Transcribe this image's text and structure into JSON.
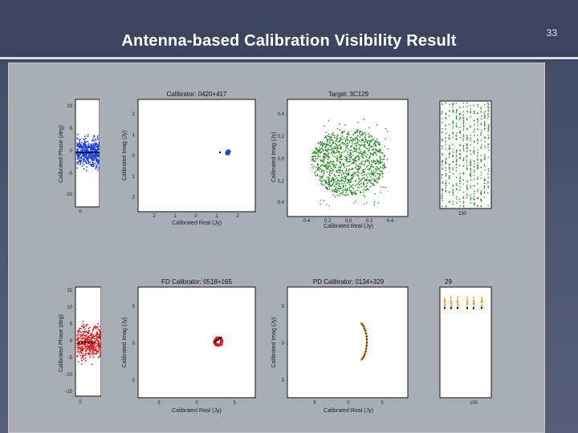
{
  "slide": {
    "title": "Antenna-based Calibration Visibility Result",
    "page_number": "33"
  },
  "plots": {
    "top_left": {
      "ylabel": "Calibrated Phase (deg)",
      "yticks": [
        "10",
        "5",
        "0",
        "-5",
        "-10"
      ],
      "xticks": [
        "0"
      ]
    },
    "top_center": {
      "title": "Calibrator: 0420+417",
      "ylabel": "Calibrated Imag (Jy)",
      "xlabel": "Calibrated Real (Jy)",
      "yticks": [
        "2",
        "1",
        "0",
        "1",
        "2"
      ],
      "xticks": [
        "2",
        "1",
        "0",
        "1",
        "2"
      ]
    },
    "top_right": {
      "title": "Target: 3C129",
      "ylabel": "Calibrated Imag (Jy)",
      "xlabel": "Calibrated Real (Jy)",
      "yticks": [
        "0.4",
        "0.2",
        "0.0",
        "0.2",
        "0.4"
      ],
      "xticks": [
        "0.4",
        "0.2",
        "0.0",
        "0.2",
        "0.4"
      ]
    },
    "top_far_right": {
      "xticks": [
        "150"
      ]
    },
    "bottom_left": {
      "ylabel": "Calibrated Phase (deg)",
      "yticks": [
        "15",
        "10",
        "5",
        "0",
        "-5",
        "-10",
        "-15"
      ],
      "xticks": [
        "0"
      ]
    },
    "bottom_center": {
      "title": "FD Calibrator: 0518+165",
      "ylabel": "Calibrated Imag (Jy)",
      "xlabel": "Calibrated Real (Jy)",
      "yticks": [
        "5",
        "0",
        "5"
      ],
      "xticks": [
        "5",
        "0",
        "5"
      ]
    },
    "bottom_right": {
      "title": "PD Calibrator: 0134+329",
      "ylabel": "Calibrated Imag (Jy)",
      "xlabel": "Calibrated Real (Jy)",
      "yticks": [
        "5",
        "0",
        "5"
      ],
      "xticks": [
        "5",
        "0",
        "5"
      ]
    },
    "bottom_far_right": {
      "title_fragment": "29",
      "xticks": [
        "150"
      ]
    }
  },
  "colors": {
    "blue": "#1a3fe0",
    "green": "#1f8a1f",
    "red": "#e01818",
    "orange": "#e8961e",
    "black": "#000000"
  }
}
